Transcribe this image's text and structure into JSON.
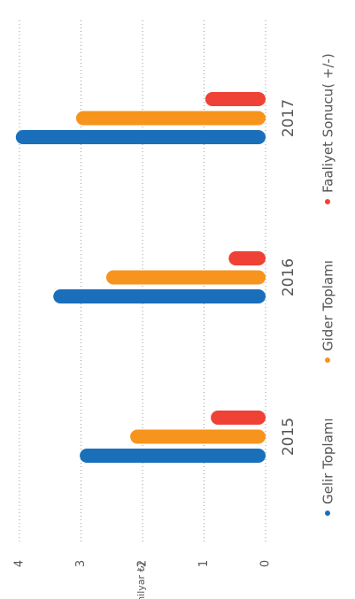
{
  "chart_data": {
    "type": "bar",
    "orientation": "rotated",
    "ylabel": "(milyar ₺)",
    "categories": [
      "2015",
      "2016",
      "2017"
    ],
    "series": [
      {
        "name": "Gelir Toplamı",
        "color": "#1a6fba",
        "values": [
          3.02,
          3.45,
          4.06
        ]
      },
      {
        "name": "Gider Toplamı",
        "color": "#f7941d",
        "values": [
          2.2,
          2.59,
          3.08
        ]
      },
      {
        "name": "Faaliyet Sonucu( +/-)",
        "color": "#ef4136",
        "values": [
          0.89,
          0.6,
          0.98
        ]
      }
    ],
    "ylim": [
      0,
      4
    ],
    "yticks": [
      0,
      1,
      2,
      3,
      4
    ],
    "grid": true,
    "legend": "bottom"
  }
}
